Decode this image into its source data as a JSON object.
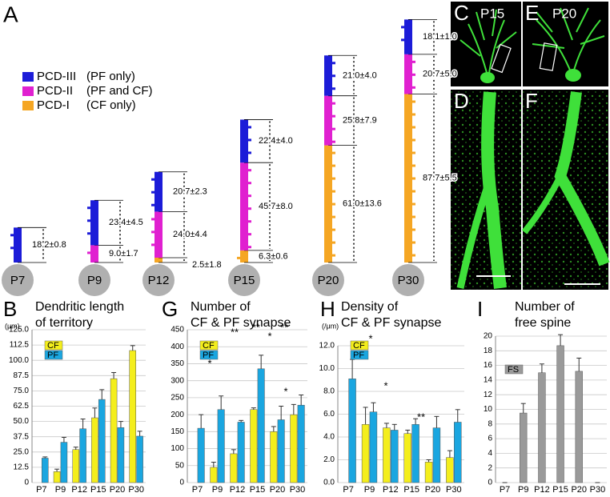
{
  "panel_a": {
    "label": "A",
    "legend": [
      {
        "name": "PCD-III",
        "note": "(PF only)",
        "color": "#1c1cd8"
      },
      {
        "name": "PCD-II",
        "note": "(PF and CF)",
        "color": "#e020d0"
      },
      {
        "name": "PCD-I",
        "note": "(CF only)",
        "color": "#f5a623"
      }
    ],
    "stages": [
      {
        "name": "P7",
        "segments": [
          {
            "color": "#1c1cd8",
            "length": 18.2,
            "label": "18.2±0.8"
          }
        ]
      },
      {
        "name": "P9",
        "segments": [
          {
            "color": "#e020d0",
            "length": 9.0,
            "label": "9.0±1.7"
          },
          {
            "color": "#1c1cd8",
            "length": 23.4,
            "label": "23.4±4.5"
          }
        ]
      },
      {
        "name": "P12",
        "segments": [
          {
            "color": "#f5a623",
            "length": 2.5,
            "label": "2.5±1.8"
          },
          {
            "color": "#e020d0",
            "length": 24.0,
            "label": "24.0±4.4"
          },
          {
            "color": "#1c1cd8",
            "length": 20.7,
            "label": "20.7±2.3"
          }
        ]
      },
      {
        "name": "P15",
        "segments": [
          {
            "color": "#f5a623",
            "length": 6.3,
            "label": "6.3±0.6"
          },
          {
            "color": "#e020d0",
            "length": 45.7,
            "label": "45.7±8.0"
          },
          {
            "color": "#1c1cd8",
            "length": 22.4,
            "label": "22.4±4.0"
          }
        ]
      },
      {
        "name": "P20",
        "segments": [
          {
            "color": "#f5a623",
            "length": 61.0,
            "label": "61.0±13.6"
          },
          {
            "color": "#e020d0",
            "length": 25.8,
            "label": "25.8±7.9"
          },
          {
            "color": "#1c1cd8",
            "length": 21.0,
            "label": "21.0±4.0"
          }
        ]
      },
      {
        "name": "P30",
        "segments": [
          {
            "color": "#f5a623",
            "length": 87.7,
            "label": "87.7±5.5"
          },
          {
            "color": "#e020d0",
            "length": 20.7,
            "label": "20.7±5.0"
          },
          {
            "color": "#1c1cd8",
            "length": 18.1,
            "label": "18.1±1.0"
          }
        ]
      }
    ]
  },
  "images": [
    {
      "label": "C",
      "stage": "P15"
    },
    {
      "label": "E",
      "stage": "P20"
    },
    {
      "label": "D"
    },
    {
      "label": "F"
    }
  ],
  "chart_data": [
    {
      "type": "bar",
      "panel": "B",
      "title": [
        "Dendritic length",
        "of territory"
      ],
      "unit": "(μm)",
      "categories": [
        "P7",
        "P9",
        "P12",
        "P15",
        "P20",
        "P30"
      ],
      "series": [
        {
          "name": "CF",
          "color": "#f4ee1c",
          "values": [
            null,
            9,
            27,
            53,
            85,
            108
          ],
          "errors": [
            null,
            2,
            2,
            8,
            5,
            4
          ]
        },
        {
          "name": "PF",
          "color": "#1aa6e0",
          "values": [
            20,
            33,
            44,
            68,
            45,
            38
          ],
          "errors": [
            1,
            4,
            8,
            8,
            5,
            4
          ]
        }
      ],
      "ylim": [
        0,
        125
      ],
      "yticks": [
        0,
        12.5,
        {
          "value": 25,
          "label": "25.0"
        },
        37.5,
        {
          "value": 50,
          "label": "50.0"
        },
        62.5,
        {
          "value": 75,
          "label": "75.0"
        },
        87.5,
        {
          "value": 100,
          "label": "100.0"
        },
        112.5,
        {
          "value": 125,
          "label": "125.0"
        }
      ],
      "grid": true,
      "annotations": []
    },
    {
      "type": "bar",
      "panel": "G",
      "title": [
        "Number of",
        "CF & PF synapse"
      ],
      "categories": [
        "P7",
        "P9",
        "P12",
        "P15",
        "P20",
        "P30"
      ],
      "series": [
        {
          "name": "CF",
          "color": "#f4ee1c",
          "values": [
            null,
            45,
            85,
            215,
            150,
            200
          ],
          "errors": [
            null,
            15,
            12,
            5,
            15,
            30
          ]
        },
        {
          "name": "PF",
          "color": "#1aa6e0",
          "values": [
            160,
            215,
            178,
            335,
            185,
            228
          ],
          "errors": [
            40,
            40,
            5,
            40,
            40,
            30
          ]
        }
      ],
      "ylim": [
        0,
        450
      ],
      "yticks": [
        0,
        50,
        100,
        150,
        200,
        250,
        300,
        350,
        400,
        450
      ],
      "grid": true,
      "annotations": [
        "*",
        "**",
        "**",
        "*",
        "**",
        "*"
      ]
    },
    {
      "type": "bar",
      "panel": "H",
      "title": [
        "Density of",
        "CF & PF synapse"
      ],
      "unit": "(/μm)",
      "categories": [
        "P7",
        "P9",
        "P12",
        "P15",
        "P20",
        "P30"
      ],
      "series": [
        {
          "name": "CF",
          "color": "#f4ee1c",
          "values": [
            null,
            5.1,
            4.8,
            4.3,
            1.8,
            2.2
          ],
          "errors": [
            null,
            1.5,
            0.4,
            0.3,
            0.2,
            0.6
          ]
        },
        {
          "name": "PF",
          "color": "#1aa6e0",
          "values": [
            9.1,
            6.2,
            4.6,
            5.1,
            4.8,
            5.3
          ],
          "errors": [
            1.7,
            0.8,
            0.5,
            0.5,
            1.0,
            1.1
          ]
        }
      ],
      "ylim": [
        0,
        12
      ],
      "yticks": [
        {
          "value": 0,
          "label": "0.0"
        },
        {
          "value": 2,
          "label": "2.0"
        },
        {
          "value": 4,
          "label": "4.0"
        },
        {
          "value": 6,
          "label": "6.0"
        },
        {
          "value": 8,
          "label": "8.0"
        },
        {
          "value": 10,
          "label": "10.0"
        },
        {
          "value": 12,
          "label": "12.0"
        }
      ],
      "grid": true,
      "annotations": [
        "*",
        "*",
        "**"
      ]
    },
    {
      "type": "bar",
      "panel": "I",
      "title": [
        "Number of",
        "free spine"
      ],
      "categories": [
        "P7",
        "P9",
        "P12",
        "P15",
        "P20",
        "P30"
      ],
      "series": [
        {
          "name": "FS",
          "color": "#9a9a9a",
          "values": [
            0,
            9.5,
            15,
            18.7,
            15.2,
            0
          ],
          "errors": [
            0,
            1.3,
            1.2,
            1.5,
            1.8,
            0
          ]
        }
      ],
      "ylim": [
        0,
        20
      ],
      "yticks": [
        0,
        2,
        4,
        6,
        8,
        10,
        12,
        14,
        16,
        18,
        20
      ],
      "grid": true,
      "annotations": []
    }
  ]
}
